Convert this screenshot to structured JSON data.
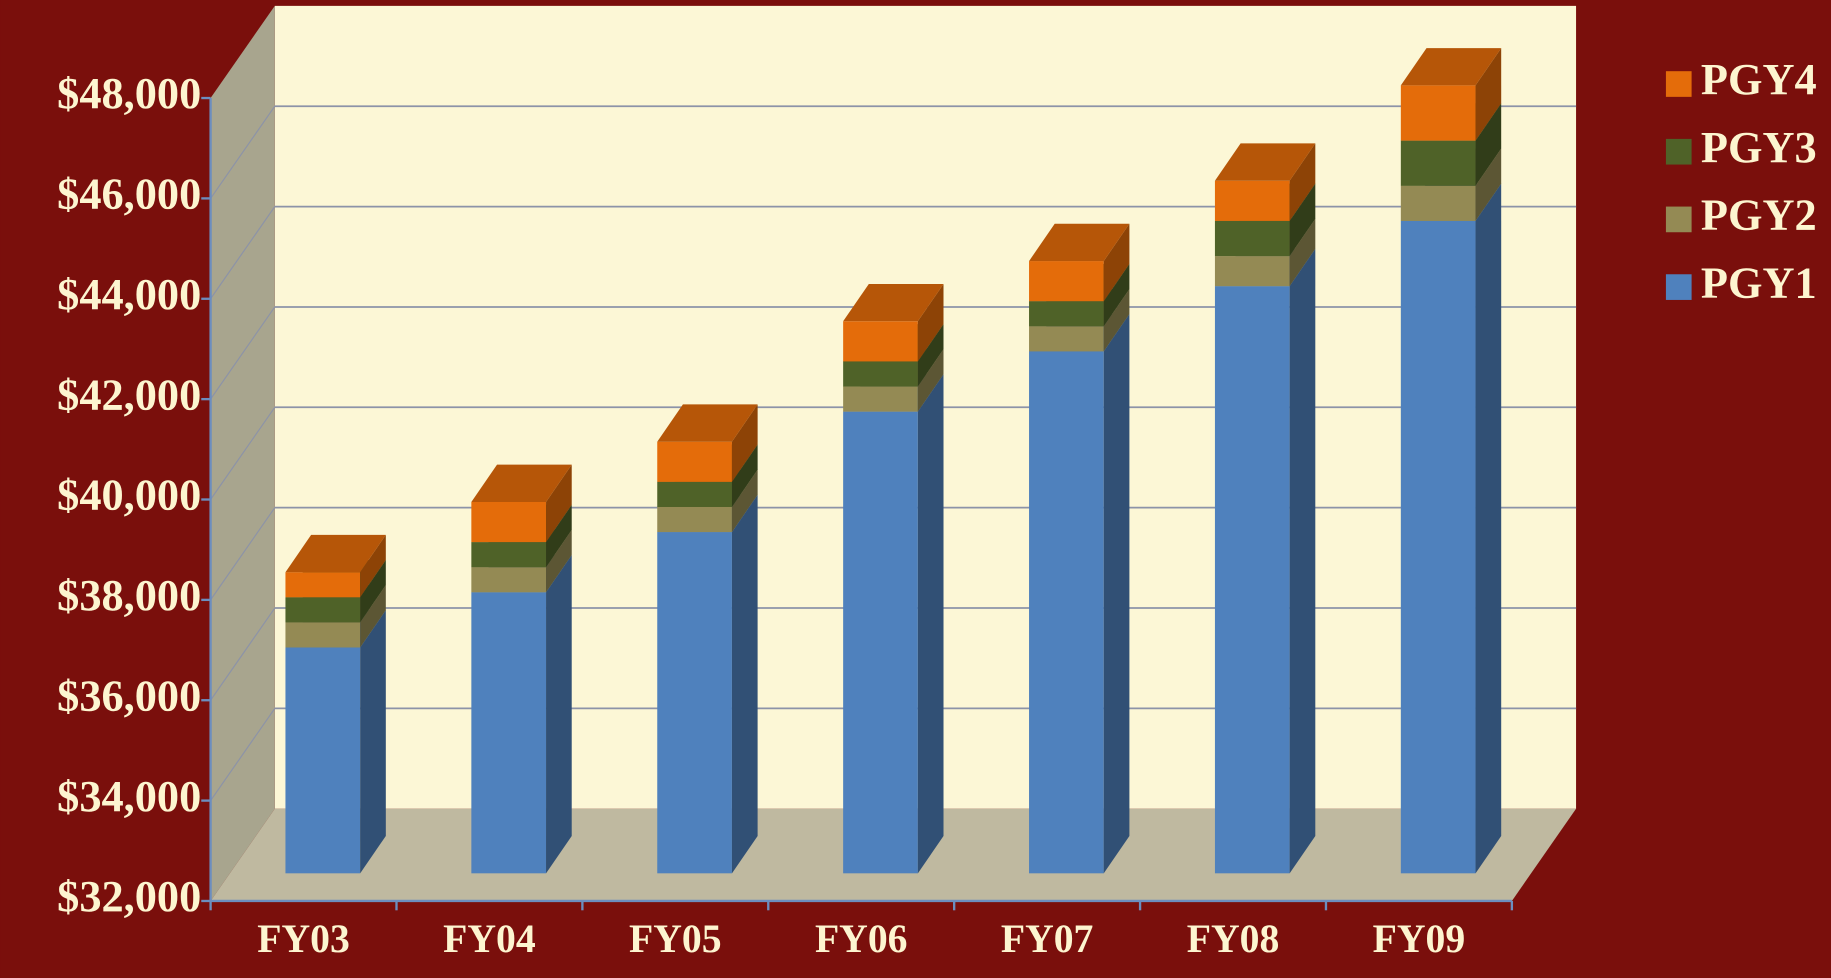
{
  "chart_data": {
    "type": "bar3d_stacked",
    "categories": [
      "FY03",
      "FY04",
      "FY05",
      "FY06",
      "FY07",
      "FY08",
      "FY09"
    ],
    "series": [
      {
        "name": "PGY1",
        "color": "#4f81bd",
        "values": [
          36500,
          37600,
          38800,
          41200,
          42400,
          43700,
          45000
        ]
      },
      {
        "name": "PGY2",
        "color": "#948a54",
        "values": [
          500,
          500,
          500,
          500,
          500,
          600,
          700
        ]
      },
      {
        "name": "PGY3",
        "color": "#4f6228",
        "values": [
          500,
          500,
          500,
          500,
          500,
          700,
          900
        ]
      },
      {
        "name": "PGY4",
        "color": "#e46c0a",
        "values": [
          500,
          800,
          800,
          800,
          800,
          800,
          1100
        ]
      }
    ],
    "ylim": [
      32000,
      48000
    ],
    "yticks": [
      {
        "value": 32000,
        "label": "$32,000"
      },
      {
        "value": 34000,
        "label": "$34,000"
      },
      {
        "value": 36000,
        "label": "$36,000"
      },
      {
        "value": 38000,
        "label": "$38,000"
      },
      {
        "value": 40000,
        "label": "$40,000"
      },
      {
        "value": 42000,
        "label": "$42,000"
      },
      {
        "value": 44000,
        "label": "$44,000"
      },
      {
        "value": 46000,
        "label": "$46,000"
      },
      {
        "value": 48000,
        "label": "$48,000"
      }
    ],
    "grid": true,
    "legend": "right"
  }
}
